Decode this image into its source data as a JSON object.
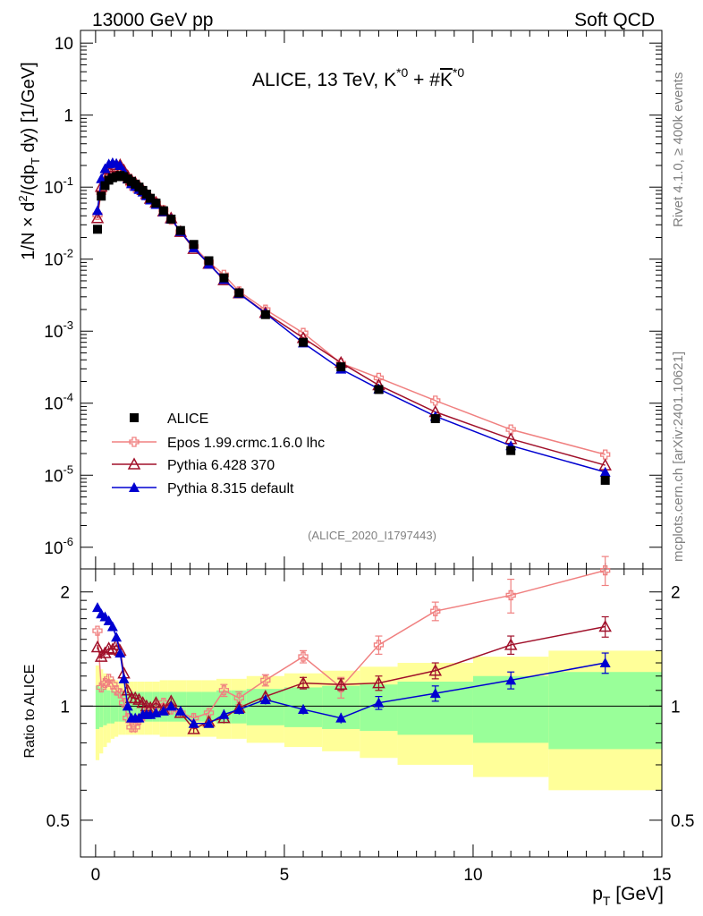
{
  "header": {
    "left": "13000 GeV pp",
    "right": "Soft QCD"
  },
  "chart_data": {
    "type": "line",
    "title_parts": {
      "main": "ALICE, 13 TeV, K",
      "sup1": "*0",
      "plus": " + #",
      "kbar": "K",
      "sup2": "*0"
    },
    "ylabel_top": "1/N × d²/(dp_T dy) [1/GeV]",
    "ylabel_bottom": "Ratio to ALICE",
    "xlabel": "p_T [GeV]",
    "xlim": [
      -0.4,
      15.0
    ],
    "ylim_top": [
      5e-07,
      15
    ],
    "ylim_ratio": [
      0.4,
      2.3
    ],
    "xticks": [
      0,
      5,
      10,
      15
    ],
    "yticks_top": [
      "10^-6",
      "10^-5",
      "10^-4",
      "10^-3",
      "10^-2",
      "10^-1",
      "1",
      "10"
    ],
    "yticks_ratio": [
      "0.5",
      "1",
      "2"
    ],
    "watermark": "(ALICE_2020_I1797443)",
    "side_label_top": "Rivet 4.1.0, ≥ 400k events",
    "side_label_bottom": "mcplots.cern.ch [arXiv:2401.10621]",
    "legend_position": "bottom-left",
    "x": [
      0.05,
      0.15,
      0.25,
      0.35,
      0.45,
      0.55,
      0.65,
      0.75,
      0.85,
      0.95,
      1.05,
      1.15,
      1.25,
      1.35,
      1.45,
      1.6,
      1.8,
      2.0,
      2.25,
      2.6,
      3.0,
      3.4,
      3.8,
      4.5,
      5.5,
      6.5,
      7.5,
      9.0,
      11.0,
      13.5
    ],
    "data": [
      0.026,
      0.075,
      0.105,
      0.125,
      0.135,
      0.14,
      0.145,
      0.14,
      0.13,
      0.12,
      0.11,
      0.1,
      0.09,
      0.08,
      0.07,
      0.06,
      0.047,
      0.036,
      0.025,
      0.016,
      0.0095,
      0.0055,
      0.0034,
      0.0017,
      0.0007,
      0.00032,
      0.000155,
      6.1e-05,
      2.2e-05,
      8.5e-06
    ],
    "data_rel_error": [
      0.25,
      0.22,
      0.2,
      0.18,
      0.16,
      0.14,
      0.13,
      0.12,
      0.12,
      0.12,
      0.12,
      0.12,
      0.12,
      0.12,
      0.12,
      0.12,
      0.13,
      0.13,
      0.13,
      0.14,
      0.14,
      0.15,
      0.15,
      0.16,
      0.17,
      0.18,
      0.2,
      0.22,
      0.27,
      0.3
    ],
    "series": [
      {
        "name": "ALICE",
        "role": "data",
        "color": "#000000",
        "marker": "square"
      },
      {
        "name": "Epos 1.99.crmc.1.6.0 lhc",
        "color": "#f08080",
        "marker": "open-cross",
        "ratio": [
          1.58,
          1.12,
          1.15,
          1.18,
          1.14,
          1.1,
          1.08,
          1.02,
          0.93,
          0.88,
          0.88,
          0.92,
          0.94,
          0.96,
          0.98,
          1.0,
          1.02,
          0.98,
          0.96,
          0.93,
          0.96,
          1.1,
          1.05,
          1.17,
          1.35,
          1.12,
          1.45,
          1.78,
          1.96,
          2.28
        ],
        "ratio_err": [
          0.03,
          0.03,
          0.03,
          0.03,
          0.03,
          0.03,
          0.03,
          0.03,
          0.03,
          0.03,
          0.03,
          0.03,
          0.03,
          0.03,
          0.03,
          0.03,
          0.03,
          0.03,
          0.03,
          0.03,
          0.03,
          0.04,
          0.04,
          0.04,
          0.05,
          0.07,
          0.08,
          0.1,
          0.2,
          0.2
        ]
      },
      {
        "name": "Pythia 6.428 370",
        "color": "#a0102a",
        "marker": "open-triangle",
        "ratio": [
          1.43,
          1.35,
          1.38,
          1.42,
          1.41,
          1.45,
          1.4,
          1.22,
          1.1,
          1.05,
          1.05,
          1.04,
          1.02,
          1.0,
          0.99,
          1.02,
          0.98,
          1.03,
          0.96,
          0.87,
          0.91,
          0.93,
          0.99,
          1.06,
          1.15,
          1.14,
          1.15,
          1.24,
          1.45,
          1.62
        ],
        "ratio_err": [
          0.02,
          0.02,
          0.02,
          0.02,
          0.02,
          0.02,
          0.02,
          0.02,
          0.02,
          0.02,
          0.02,
          0.02,
          0.02,
          0.02,
          0.02,
          0.02,
          0.02,
          0.02,
          0.02,
          0.02,
          0.03,
          0.03,
          0.03,
          0.03,
          0.04,
          0.04,
          0.05,
          0.06,
          0.08,
          0.1
        ]
      },
      {
        "name": "Pythia 8.315 default",
        "color": "#0000d0",
        "marker": "triangle",
        "ratio": [
          1.82,
          1.75,
          1.72,
          1.68,
          1.62,
          1.52,
          1.38,
          1.18,
          1.0,
          0.93,
          0.93,
          0.93,
          0.95,
          0.95,
          0.95,
          0.96,
          0.97,
          1.0,
          0.97,
          0.9,
          0.9,
          0.95,
          0.98,
          1.04,
          0.98,
          0.93,
          1.02,
          1.08,
          1.17,
          1.3
        ],
        "ratio_err": [
          0.02,
          0.02,
          0.02,
          0.02,
          0.02,
          0.02,
          0.02,
          0.02,
          0.02,
          0.02,
          0.02,
          0.02,
          0.02,
          0.02,
          0.02,
          0.02,
          0.02,
          0.02,
          0.02,
          0.02,
          0.02,
          0.03,
          0.03,
          0.03,
          0.03,
          0.03,
          0.04,
          0.05,
          0.06,
          0.08
        ]
      }
    ],
    "band_edges": [
      0.0,
      0.1,
      0.2,
      0.3,
      0.4,
      0.5,
      0.6,
      0.7,
      0.8,
      0.9,
      1.0,
      1.1,
      1.2,
      1.3,
      1.4,
      1.5,
      1.7,
      1.9,
      2.1,
      2.4,
      2.8,
      3.2,
      3.6,
      4.0,
      5.0,
      6.0,
      7.0,
      8.0,
      10.0,
      12.0,
      15.0
    ],
    "band_green_half": [
      0.13,
      0.12,
      0.11,
      0.1,
      0.1,
      0.09,
      0.09,
      0.09,
      0.09,
      0.09,
      0.09,
      0.09,
      0.09,
      0.09,
      0.09,
      0.09,
      0.09,
      0.09,
      0.09,
      0.09,
      0.09,
      0.1,
      0.1,
      0.11,
      0.12,
      0.13,
      0.14,
      0.16,
      0.2,
      0.23
    ],
    "band_yellow_half": [
      0.28,
      0.25,
      0.22,
      0.2,
      0.18,
      0.17,
      0.16,
      0.16,
      0.16,
      0.16,
      0.16,
      0.16,
      0.16,
      0.16,
      0.16,
      0.16,
      0.17,
      0.17,
      0.17,
      0.17,
      0.17,
      0.18,
      0.18,
      0.2,
      0.22,
      0.24,
      0.27,
      0.3,
      0.35,
      0.4
    ]
  }
}
